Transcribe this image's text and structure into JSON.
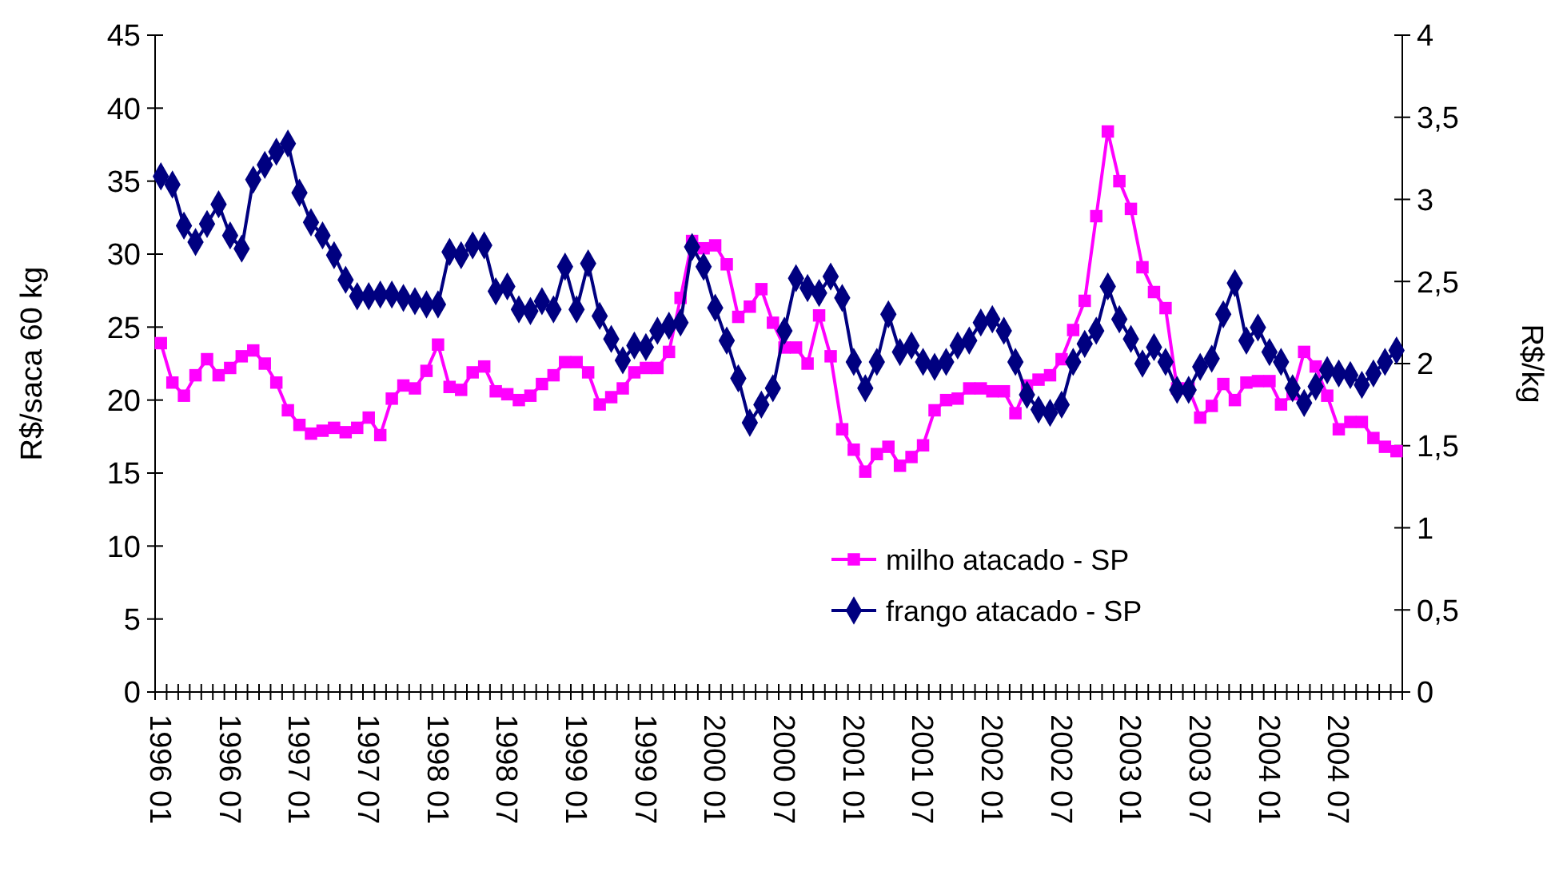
{
  "chart_data": {
    "type": "line",
    "categories": [
      "1996 01",
      null,
      null,
      null,
      null,
      null,
      "1996 07",
      null,
      null,
      null,
      null,
      null,
      "1997 01",
      null,
      null,
      null,
      null,
      null,
      "1997 07",
      null,
      null,
      null,
      null,
      null,
      "1998 01",
      null,
      null,
      null,
      null,
      null,
      "1998 07",
      null,
      null,
      null,
      null,
      null,
      "1999 01",
      null,
      null,
      null,
      null,
      null,
      "1999 07",
      null,
      null,
      null,
      null,
      null,
      "2000 01",
      null,
      null,
      null,
      null,
      null,
      "2000 07",
      null,
      null,
      null,
      null,
      null,
      "2001 01",
      null,
      null,
      null,
      null,
      null,
      "2001 07",
      null,
      null,
      null,
      null,
      null,
      "2002 01",
      null,
      null,
      null,
      null,
      null,
      "2002 07",
      null,
      null,
      null,
      null,
      null,
      "2003 01",
      null,
      null,
      null,
      null,
      null,
      "2003 07",
      null,
      null,
      null,
      null,
      null,
      "2004 01",
      null,
      null,
      null,
      null,
      null,
      "2004 07",
      null,
      null,
      null,
      null,
      null
    ],
    "series": [
      {
        "name": "milho atacado - SP",
        "color": "#ff00ff",
        "marker": "square",
        "values": [
          23.9,
          21.2,
          20.3,
          21.7,
          22.8,
          21.7,
          22.2,
          23.0,
          23.4,
          22.5,
          21.2,
          19.3,
          18.3,
          17.7,
          17.9,
          18.1,
          17.8,
          18.1,
          18.8,
          17.6,
          20.1,
          21.0,
          20.8,
          22.0,
          23.8,
          20.9,
          20.7,
          21.9,
          22.3,
          20.6,
          20.4,
          20.0,
          20.3,
          21.1,
          21.7,
          22.6,
          22.6,
          21.9,
          19.7,
          20.2,
          20.8,
          21.9,
          22.2,
          22.2,
          23.3,
          27.0,
          30.9,
          30.4,
          30.6,
          29.3,
          25.7,
          26.4,
          27.6,
          25.3,
          23.6,
          23.6,
          22.5,
          25.8,
          23.0,
          18.0,
          16.6,
          15.1,
          16.3,
          16.8,
          15.5,
          16.1,
          16.9,
          19.3,
          20.0,
          20.1,
          20.8,
          20.8,
          20.6,
          20.6,
          19.1,
          21.0,
          21.4,
          21.7,
          22.8,
          24.8,
          26.8,
          32.6,
          38.4,
          35.0,
          33.1,
          29.1,
          27.4,
          26.3,
          20.8,
          20.8,
          18.8,
          19.6,
          21.1,
          20.0,
          21.2,
          21.3,
          21.3,
          19.7,
          20.4,
          23.3,
          22.3,
          20.3,
          18.0,
          18.5,
          18.5,
          17.4,
          16.8,
          16.5
        ]
      },
      {
        "name": "frango atacado - SP",
        "color": "#000080",
        "marker": "diamond",
        "axis": "y2",
        "values": [
          3.14,
          3.09,
          2.84,
          2.74,
          2.85,
          2.97,
          2.78,
          2.7,
          3.12,
          3.21,
          3.29,
          3.34,
          3.04,
          2.86,
          2.78,
          2.66,
          2.51,
          2.41,
          2.41,
          2.42,
          2.42,
          2.4,
          2.38,
          2.36,
          2.36,
          2.68,
          2.66,
          2.72,
          2.72,
          2.44,
          2.47,
          2.33,
          2.32,
          2.38,
          2.33,
          2.59,
          2.33,
          2.61,
          2.29,
          2.15,
          2.02,
          2.11,
          2.1,
          2.2,
          2.23,
          2.25,
          2.71,
          2.59,
          2.34,
          2.14,
          1.91,
          1.64,
          1.75,
          1.85,
          2.2,
          2.52,
          2.46,
          2.43,
          2.53,
          2.4,
          2.01,
          1.85,
          2.01,
          2.3,
          2.07,
          2.11,
          2.01,
          1.98,
          2.01,
          2.11,
          2.14,
          2.25,
          2.27,
          2.2,
          2.01,
          1.81,
          1.72,
          1.7,
          1.75,
          2.01,
          2.12,
          2.2,
          2.47,
          2.27,
          2.15,
          2.0,
          2.1,
          2.01,
          1.84,
          1.84,
          1.98,
          2.03,
          2.3,
          2.49,
          2.14,
          2.22,
          2.07,
          2.01,
          1.85,
          1.76,
          1.86,
          1.96,
          1.94,
          1.93,
          1.87,
          1.94,
          2.01,
          2.08
        ]
      }
    ],
    "ylabel": "R$/saca 60 kg",
    "y2label": "R$/kg",
    "ylim": [
      0,
      45
    ],
    "yticks": [
      0,
      5,
      10,
      15,
      20,
      25,
      30,
      35,
      40,
      45
    ],
    "y2lim": [
      0,
      4
    ],
    "y2ticks": [
      0,
      {
        "value": 0.5,
        "label": "0,5"
      },
      1,
      {
        "value": 1.5,
        "label": "1,5"
      },
      2,
      {
        "value": 2.5,
        "label": "2,5"
      },
      3,
      {
        "value": 3.5,
        "label": "3,5"
      },
      4
    ],
    "legend": "bottom right",
    "grid": false,
    "line_style": "solid"
  }
}
